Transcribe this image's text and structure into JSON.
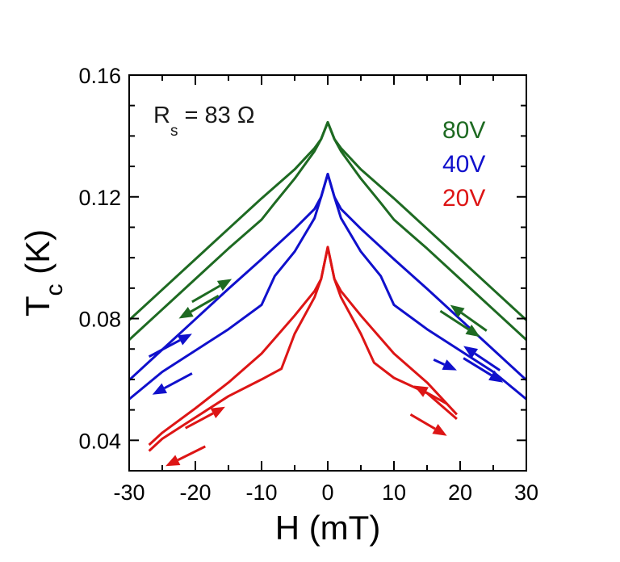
{
  "chart_data": {
    "type": "line",
    "xlabel": "H (mT)",
    "ylabel_main": "T",
    "ylabel_sub": "c",
    "ylabel_unit": " (K)",
    "xlim": [
      -30,
      30
    ],
    "ylim": [
      0.03,
      0.16
    ],
    "xticks": [
      -30,
      -20,
      -10,
      0,
      10,
      20,
      30
    ],
    "xtick_labels": [
      "-30",
      "-20",
      "-10",
      "0",
      "10",
      "20",
      "30"
    ],
    "yticks": [
      0.04,
      0.08,
      0.12,
      0.16
    ],
    "ytick_labels": [
      "0.04",
      "0.08",
      "0.12",
      "0.16"
    ],
    "grid": false,
    "legend_position": "top-right",
    "annotation": {
      "main": "R",
      "sub": "s",
      "rest": " = 83 Ω"
    },
    "series": [
      {
        "name": "80V",
        "color": "#1e6a22",
        "upper": [
          [
            -30,
            0.0795
          ],
          [
            -25,
            0.0895
          ],
          [
            -20,
            0.0995
          ],
          [
            -15,
            0.1095
          ],
          [
            -10,
            0.1195
          ],
          [
            -5,
            0.129
          ],
          [
            -2,
            0.136
          ],
          [
            -1,
            0.139
          ],
          [
            0,
            0.1445
          ],
          [
            1,
            0.139
          ],
          [
            2,
            0.135
          ],
          [
            5,
            0.126
          ],
          [
            8,
            0.118
          ],
          [
            10,
            0.1125
          ],
          [
            15,
            0.103
          ],
          [
            20,
            0.093
          ],
          [
            25,
            0.083
          ],
          [
            30,
            0.073
          ]
        ],
        "lower": [
          [
            -30,
            0.073
          ],
          [
            -25,
            0.083
          ],
          [
            -20,
            0.093
          ],
          [
            -15,
            0.103
          ],
          [
            -10,
            0.1125
          ],
          [
            -8,
            0.118
          ],
          [
            -5,
            0.126
          ],
          [
            -2,
            0.135
          ],
          [
            -1,
            0.139
          ],
          [
            0,
            0.1445
          ],
          [
            1,
            0.139
          ],
          [
            2,
            0.136
          ],
          [
            5,
            0.129
          ],
          [
            10,
            0.1195
          ],
          [
            15,
            0.1095
          ],
          [
            20,
            0.0995
          ],
          [
            25,
            0.0895
          ],
          [
            30,
            0.0795
          ]
        ]
      },
      {
        "name": "40V",
        "color": "#1010cc",
        "upper": [
          [
            -30,
            0.0598
          ],
          [
            -25,
            0.0698
          ],
          [
            -20,
            0.0798
          ],
          [
            -15,
            0.0898
          ],
          [
            -10,
            0.0995
          ],
          [
            -5,
            0.1095
          ],
          [
            -2,
            0.116
          ],
          [
            -1,
            0.12
          ],
          [
            0,
            0.1275
          ],
          [
            1,
            0.12
          ],
          [
            2,
            0.113
          ],
          [
            5,
            0.102
          ],
          [
            8,
            0.094
          ],
          [
            10,
            0.0845
          ],
          [
            15,
            0.0765
          ],
          [
            20,
            0.0695
          ],
          [
            25,
            0.0625
          ],
          [
            30,
            0.0535
          ]
        ],
        "lower": [
          [
            -30,
            0.0535
          ],
          [
            -25,
            0.0625
          ],
          [
            -20,
            0.0695
          ],
          [
            -15,
            0.0765
          ],
          [
            -10,
            0.0845
          ],
          [
            -8,
            0.094
          ],
          [
            -5,
            0.102
          ],
          [
            -2,
            0.113
          ],
          [
            -1,
            0.12
          ],
          [
            0,
            0.1275
          ],
          [
            1,
            0.12
          ],
          [
            2,
            0.116
          ],
          [
            5,
            0.1095
          ],
          [
            10,
            0.0995
          ],
          [
            15,
            0.0898
          ],
          [
            20,
            0.0798
          ],
          [
            25,
            0.0698
          ],
          [
            30,
            0.0598
          ]
        ]
      },
      {
        "name": "20V",
        "color": "#dd1515",
        "upper": [
          [
            -27,
            0.0385
          ],
          [
            -25,
            0.0425
          ],
          [
            -20,
            0.0505
          ],
          [
            -15,
            0.059
          ],
          [
            -10,
            0.0685
          ],
          [
            -5,
            0.081
          ],
          [
            -2,
            0.089
          ],
          [
            -1,
            0.093
          ],
          [
            0,
            0.1035
          ],
          [
            1,
            0.093
          ],
          [
            2,
            0.087
          ],
          [
            5,
            0.075
          ],
          [
            7,
            0.0655
          ],
          [
            10,
            0.0605
          ],
          [
            15,
            0.0555
          ],
          [
            19.5,
            0.047
          ]
        ],
        "lower": [
          [
            -27,
            0.0365
          ],
          [
            -25,
            0.0405
          ],
          [
            -20,
            0.0475
          ],
          [
            -15,
            0.0545
          ],
          [
            -10,
            0.06
          ],
          [
            -7,
            0.0635
          ],
          [
            -5,
            0.075
          ],
          [
            -2,
            0.087
          ],
          [
            -1,
            0.093
          ],
          [
            0,
            0.1035
          ],
          [
            1,
            0.093
          ],
          [
            2,
            0.089
          ],
          [
            5,
            0.081
          ],
          [
            10,
            0.0685
          ],
          [
            15,
            0.059
          ],
          [
            19.5,
            0.0485
          ]
        ]
      }
    ],
    "arrows": [
      {
        "series": "80V",
        "from": [
          -20.5,
          0.0855
        ],
        "to": [
          -14.5,
          0.093
        ]
      },
      {
        "series": "80V",
        "from": [
          -16.5,
          0.0875
        ],
        "to": [
          -22.5,
          0.08
        ]
      },
      {
        "series": "80V",
        "from": [
          17,
          0.0825
        ],
        "to": [
          23,
          0.074
        ]
      },
      {
        "series": "80V",
        "from": [
          24,
          0.076
        ],
        "to": [
          18.5,
          0.0845
        ]
      },
      {
        "series": "40V",
        "from": [
          -27,
          0.0675
        ],
        "to": [
          -20.5,
          0.075
        ]
      },
      {
        "series": "40V",
        "from": [
          -20.5,
          0.062
        ],
        "to": [
          -26.5,
          0.055
        ]
      },
      {
        "series": "40V",
        "from": [
          20.5,
          0.067
        ],
        "to": [
          26.5,
          0.059
        ]
      },
      {
        "series": "40V",
        "from": [
          26,
          0.063
        ],
        "to": [
          20.5,
          0.071
        ]
      },
      {
        "series": "40V",
        "from": [
          16,
          0.0665
        ],
        "to": [
          19.5,
          0.063
        ]
      },
      {
        "series": "20V",
        "from": [
          -21.5,
          0.044
        ],
        "to": [
          -15.5,
          0.051
        ]
      },
      {
        "series": "20V",
        "from": [
          -18.5,
          0.038
        ],
        "to": [
          -24.5,
          0.0315
        ]
      },
      {
        "series": "20V",
        "from": [
          12.5,
          0.0485
        ],
        "to": [
          18,
          0.0415
        ]
      },
      {
        "series": "20V",
        "from": [
          18,
          0.052
        ],
        "to": [
          13,
          0.058
        ]
      }
    ]
  }
}
